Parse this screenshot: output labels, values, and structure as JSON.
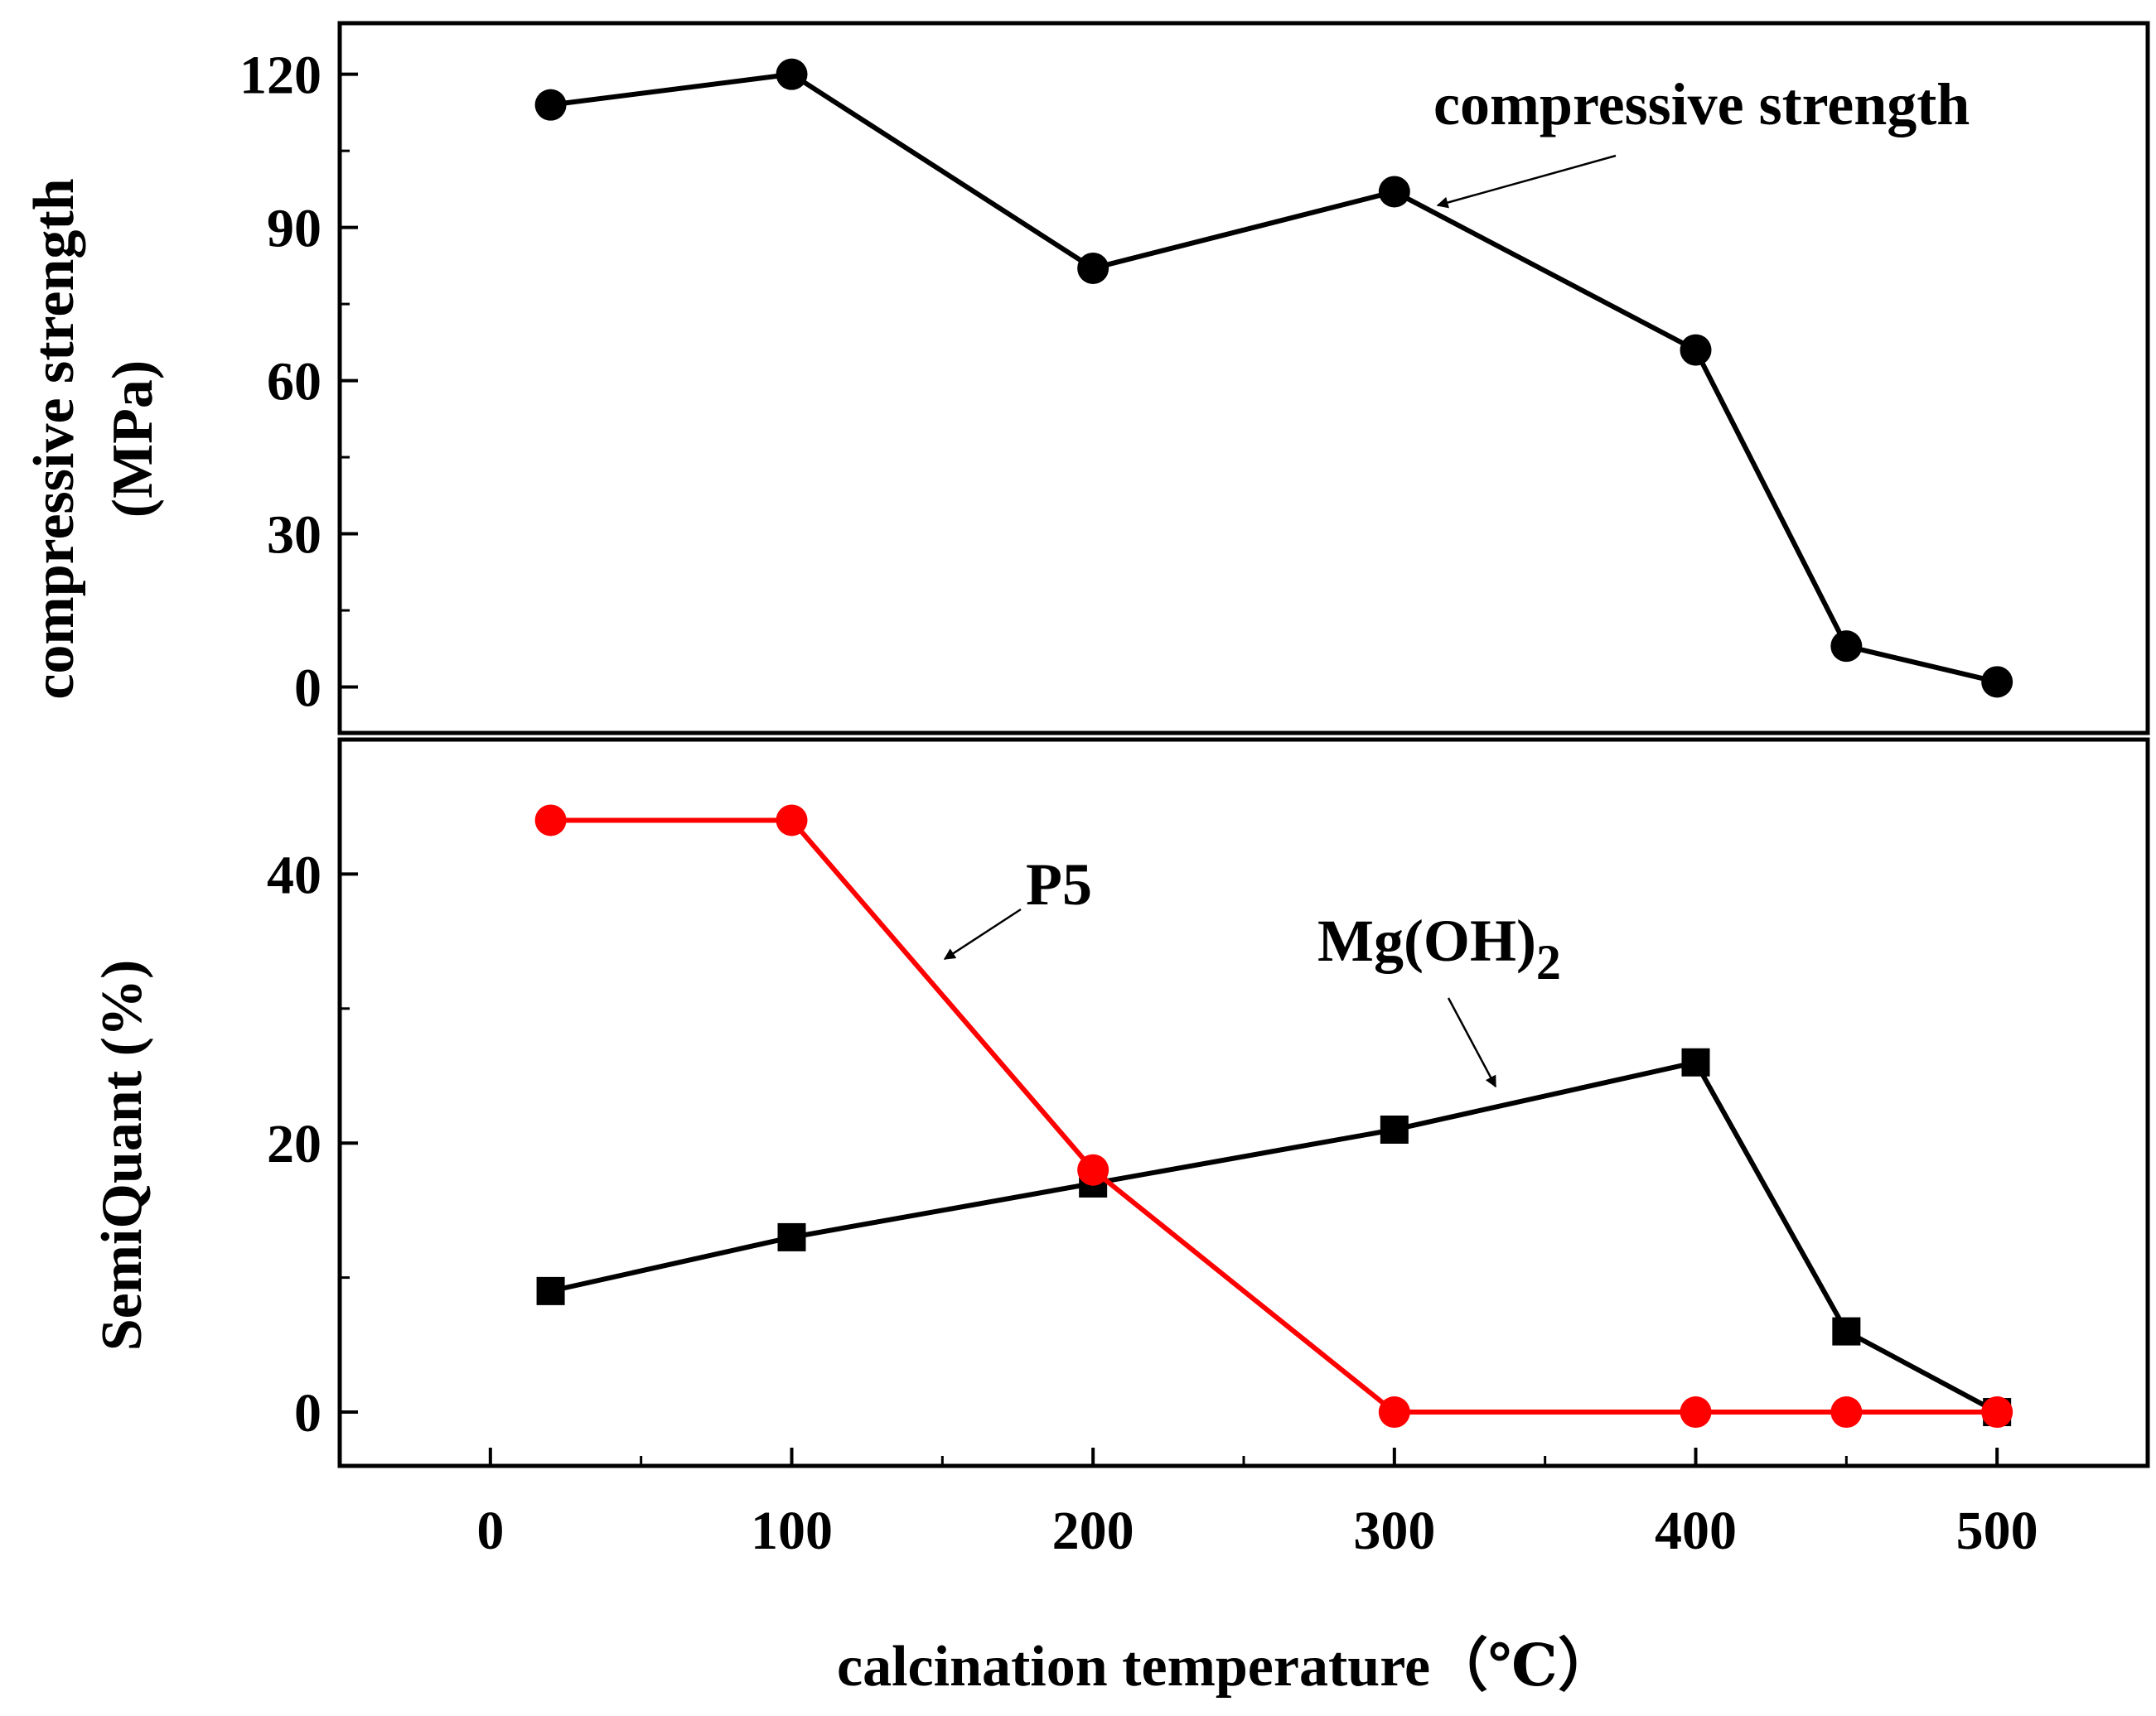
{
  "chart_data": [
    {
      "type": "line",
      "panel": "top",
      "ylabel_line1": "compressive strength",
      "ylabel_line2": "(MPa)",
      "ylim": [
        -9,
        130
      ],
      "yticks": [
        0,
        30,
        60,
        90,
        120
      ],
      "ytick_labels": [
        "0",
        "30",
        "60",
        "90",
        "120"
      ],
      "xlim": [
        -50,
        550
      ],
      "series": [
        {
          "name": "compressive strength",
          "color": "#000000",
          "marker": "circle",
          "x": [
            20,
            100,
            200,
            300,
            400,
            450,
            500
          ],
          "y": [
            114,
            120,
            82,
            97,
            66,
            8,
            1
          ]
        }
      ],
      "annotations": [
        {
          "text": "compressive strength",
          "target_series": "compressive strength"
        }
      ]
    },
    {
      "type": "line",
      "panel": "bottom",
      "ylabel": "SemiQuant (%)",
      "xlabel": "calcination temperature（℃）",
      "ylim": [
        -4,
        50
      ],
      "yticks": [
        0,
        20,
        40
      ],
      "ytick_labels": [
        "0",
        "20",
        "40"
      ],
      "xlim": [
        -50,
        550
      ],
      "xticks": [
        0,
        100,
        200,
        300,
        400,
        500
      ],
      "xtick_labels": [
        "0",
        "100",
        "200",
        "300",
        "400",
        "500"
      ],
      "series": [
        {
          "name": "Mg(OH)2",
          "color": "#000000",
          "marker": "square",
          "x": [
            20,
            100,
            200,
            300,
            400,
            450,
            500
          ],
          "y": [
            9,
            13,
            17,
            21,
            26,
            6,
            0
          ]
        },
        {
          "name": "P5",
          "color": "#ff0000",
          "marker": "circle",
          "x": [
            20,
            100,
            200,
            300,
            400,
            450,
            500
          ],
          "y": [
            44,
            44,
            18,
            0,
            0,
            0,
            0
          ]
        }
      ],
      "annotations": [
        {
          "text": "P5",
          "target_series": "P5"
        },
        {
          "text_main": "Mg(OH)",
          "text_sub": "2",
          "target_series": "Mg(OH)2"
        }
      ]
    }
  ]
}
